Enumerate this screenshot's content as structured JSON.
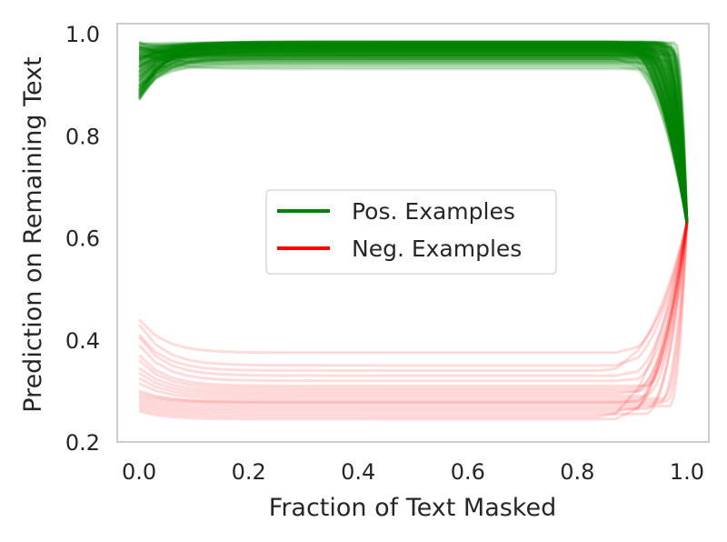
{
  "chart_data": {
    "type": "line",
    "title": "",
    "xlabel": "Fraction of Text Masked",
    "ylabel": "Prediction on Remaining Text",
    "xlim": [
      -0.04,
      1.04
    ],
    "ylim": [
      0.2,
      1.02
    ],
    "xticks": [
      "0.0",
      "0.2",
      "0.4",
      "0.6",
      "0.8",
      "1.0"
    ],
    "yticks": [
      "0.2",
      "0.4",
      "0.6",
      "0.8",
      "1.0"
    ],
    "grid": false,
    "legend_position": "center",
    "converge_point": [
      1.0,
      0.63
    ],
    "series": [
      {
        "name": "Pos. Examples",
        "color": "#008000",
        "line_count": 200,
        "start_range": [
          0.87,
          0.985
        ],
        "plateau_range": [
          0.93,
          0.985
        ],
        "end_value": 0.63
      },
      {
        "name": "Neg. Examples",
        "color": "#ff0000",
        "line_count": 20,
        "start_values": [
          0.44,
          0.43,
          0.41,
          0.405,
          0.39,
          0.37,
          0.36,
          0.345,
          0.335,
          0.325,
          0.315,
          0.3,
          0.295,
          0.29,
          0.285,
          0.28,
          0.275,
          0.27,
          0.265,
          0.26
        ],
        "plateau_values": [
          0.375,
          0.35,
          0.34,
          0.33,
          0.32,
          0.31,
          0.305,
          0.3,
          0.295,
          0.29,
          0.285,
          0.28,
          0.278,
          0.275,
          0.27,
          0.265,
          0.26,
          0.255,
          0.25,
          0.245
        ],
        "end_value": 0.63
      }
    ]
  }
}
